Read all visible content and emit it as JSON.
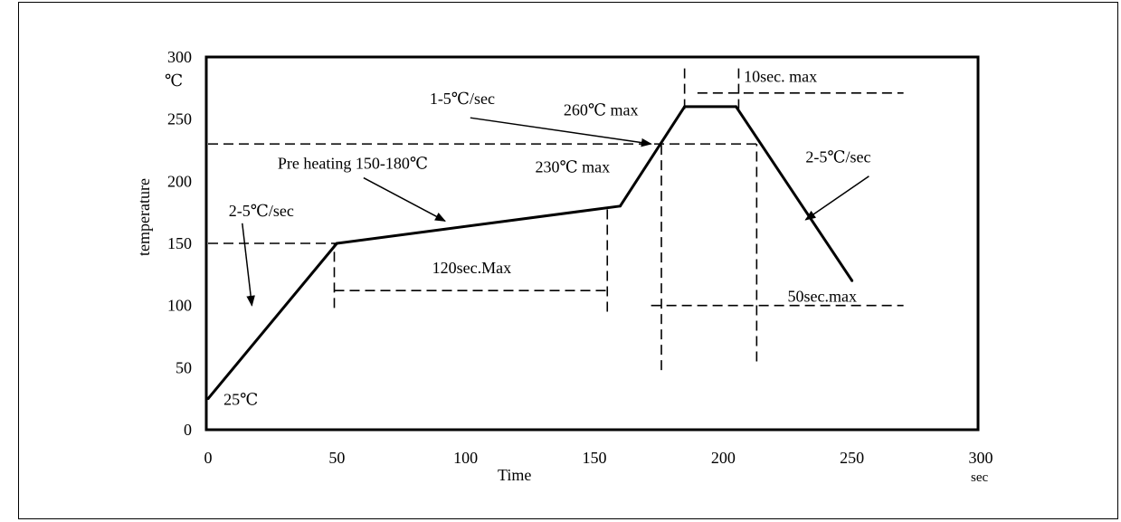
{
  "chart_data": {
    "type": "line",
    "xlabel": "Time",
    "ylabel": "temperature",
    "x_unit": "sec",
    "y_unit": "℃",
    "xlim": [
      0,
      300
    ],
    "ylim": [
      0,
      300
    ],
    "x_ticks": [
      "0",
      "50",
      "100",
      "150",
      "200",
      "250",
      "300"
    ],
    "y_ticks": [
      "0",
      "50",
      "100",
      "150",
      "200",
      "250",
      "300"
    ],
    "grid": false,
    "series": [
      {
        "x": [
          0,
          50,
          160,
          185,
          205,
          250
        ],
        "y": [
          25,
          150,
          180,
          260,
          260,
          120
        ]
      }
    ],
    "reference_lines": [
      {
        "from": [
          0,
          150
        ],
        "to": [
          50,
          150
        ]
      },
      {
        "from": [
          0,
          230
        ],
        "to": [
          213,
          230
        ]
      },
      {
        "from": [
          190,
          271
        ],
        "to": [
          270,
          271
        ]
      },
      {
        "from": [
          49,
          112
        ],
        "to": [
          156,
          112
        ]
      },
      {
        "from": [
          172,
          100
        ],
        "to": [
          270,
          100
        ]
      },
      {
        "from": [
          49,
          98
        ],
        "to": [
          49,
          150
        ]
      },
      {
        "from": [
          155,
          95
        ],
        "to": [
          155,
          180
        ]
      },
      {
        "from": [
          176,
          48
        ],
        "to": [
          176,
          230
        ]
      },
      {
        "from": [
          213,
          55
        ],
        "to": [
          213,
          230
        ]
      },
      {
        "from": [
          185,
          258
        ],
        "to": [
          185,
          292
        ]
      },
      {
        "from": [
          206,
          258
        ],
        "to": [
          206,
          292
        ]
      }
    ],
    "annotations": [
      {
        "text": "2-5℃/sec",
        "x": 8,
        "y": 172,
        "arrow_to": [
          17,
          100
        ]
      },
      {
        "text": "Pre heating  150-180℃",
        "x": 27,
        "y": 210,
        "arrow_to": [
          92,
          168
        ]
      },
      {
        "text": "120sec.Max",
        "x": 87,
        "y": 126
      },
      {
        "text": "1-5℃/sec",
        "x": 86,
        "y": 262,
        "arrow_to": [
          172,
          230
        ]
      },
      {
        "text": "260℃  max",
        "x": 138,
        "y": 253
      },
      {
        "text": "230℃  max",
        "x": 127,
        "y": 207
      },
      {
        "text": "10sec. max",
        "x": 208,
        "y": 280
      },
      {
        "text": "2-5℃/sec",
        "x": 232,
        "y": 215,
        "arrow_to": [
          232,
          169
        ]
      },
      {
        "text": "50sec.max",
        "x": 225,
        "y": 103
      },
      {
        "text": "25℃",
        "x": 6,
        "y": 20
      }
    ]
  }
}
